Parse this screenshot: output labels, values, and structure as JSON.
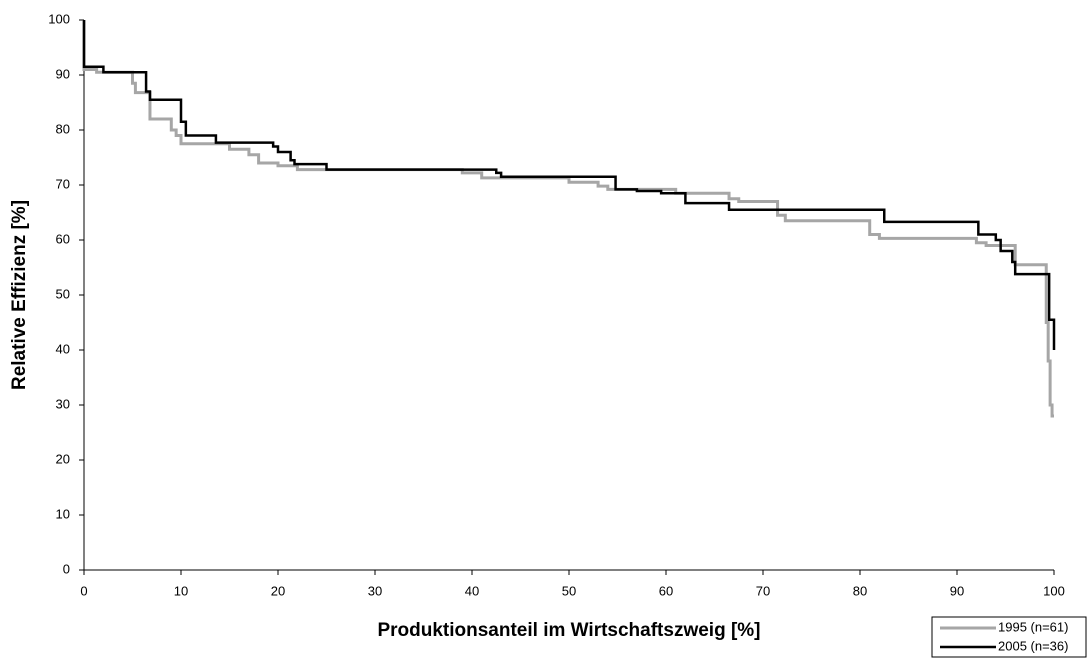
{
  "chart_data": {
    "type": "line",
    "xlabel": "Produktionsanteil im Wirtschaftszweig [%]",
    "ylabel": "Relative Effizienz [%]",
    "xlim": [
      0,
      100
    ],
    "xticks": [
      0,
      10,
      20,
      30,
      40,
      50,
      60,
      70,
      80,
      90,
      100
    ],
    "ylim": [
      0,
      100
    ],
    "yticks": [
      0,
      10,
      20,
      30,
      40,
      50,
      60,
      70,
      80,
      90,
      100
    ],
    "grid": false,
    "legend": "bottom-right",
    "series": [
      {
        "name": "1995 (n=61)",
        "color": "#a6a6a6",
        "x": [
          0,
          0,
          1.3,
          1.3,
          5,
          5,
          5.3,
          5.3,
          6.8,
          6.8,
          9,
          9,
          9.5,
          9.5,
          10,
          10,
          15,
          15,
          17,
          17,
          18,
          18,
          20,
          20,
          22,
          22,
          39,
          39,
          41,
          41,
          50,
          50,
          53,
          53,
          54,
          54,
          61,
          61,
          66.5,
          66.5,
          67.5,
          67.5,
          71.5,
          71.5,
          72.3,
          72.3,
          81,
          81,
          82,
          82,
          92,
          92,
          93,
          93,
          96,
          96,
          99.2,
          99.2,
          99.4,
          99.4,
          99.6,
          99.6,
          99.8,
          99.8,
          100
        ],
        "values": [
          100,
          91,
          91,
          90.5,
          90.5,
          88.5,
          88.5,
          86.8,
          86.8,
          82,
          82,
          80,
          80,
          79,
          79,
          77.5,
          77.5,
          76.5,
          76.5,
          75.5,
          75.5,
          74,
          74,
          73.5,
          73.5,
          72.8,
          72.8,
          72.2,
          72.2,
          71.3,
          71.3,
          70.5,
          70.5,
          69.8,
          69.8,
          69.2,
          69.2,
          68.5,
          68.5,
          67.5,
          67.5,
          67,
          67,
          64.5,
          64.5,
          63.5,
          63.5,
          61,
          61,
          60.3,
          60.3,
          59.5,
          59.5,
          59,
          59,
          55.5,
          55.5,
          45,
          45,
          38,
          38,
          30,
          30,
          28,
          28
        ]
      },
      {
        "name": "2005 (n=36)",
        "color": "#000000",
        "x": [
          0,
          0,
          2,
          2,
          6.4,
          6.4,
          6.8,
          6.8,
          10,
          10,
          10.5,
          10.5,
          13.6,
          13.6,
          19.5,
          19.5,
          20,
          20,
          21.3,
          21.3,
          21.7,
          21.7,
          25,
          25,
          42.5,
          42.5,
          43,
          43,
          54.8,
          54.8,
          57,
          57,
          59.5,
          59.5,
          62,
          62,
          66.5,
          66.5,
          82.5,
          82.5,
          92.2,
          92.2,
          94,
          94,
          94.5,
          94.5,
          95.7,
          95.7,
          96,
          96,
          99.5,
          99.5,
          100,
          100
        ],
        "values": [
          100,
          91.5,
          91.5,
          90.5,
          90.5,
          87,
          87,
          85.5,
          85.5,
          81.5,
          81.5,
          79,
          79,
          77.7,
          77.7,
          77,
          77,
          76,
          76,
          74.5,
          74.5,
          73.8,
          73.8,
          72.8,
          72.8,
          72.2,
          72.2,
          71.5,
          71.5,
          69.2,
          69.2,
          68.9,
          68.9,
          68.5,
          68.5,
          66.7,
          66.7,
          65.5,
          65.5,
          63.3,
          63.3,
          61,
          61,
          60,
          60,
          58,
          58,
          56,
          56,
          53.8,
          53.8,
          45.5,
          45.5,
          40
        ]
      }
    ]
  }
}
